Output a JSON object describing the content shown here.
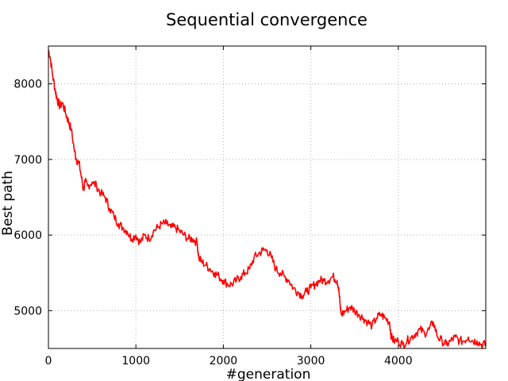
{
  "chart_data": {
    "type": "line",
    "title": "Sequential convergence",
    "xlabel": "#generation",
    "ylabel": "Best path",
    "xlim": [
      0,
      5000
    ],
    "ylim": [
      4500,
      8500
    ],
    "xticks": [
      0,
      1000,
      2000,
      3000,
      4000
    ],
    "yticks": [
      5000,
      6000,
      7000,
      8000
    ],
    "xtick_labels": [
      "0",
      "1000",
      "2000",
      "3000",
      "4000"
    ],
    "ytick_labels": [
      "5000",
      "6000",
      "7000",
      "8000"
    ],
    "grid": true,
    "colors": {
      "series": "#ff0000"
    },
    "series": [
      {
        "x": [
          0,
          20,
          50,
          80,
          100,
          130,
          160,
          200,
          230,
          260,
          300,
          320,
          350,
          380,
          400,
          420,
          450,
          500,
          550,
          600,
          650,
          700,
          750,
          800,
          850,
          900,
          950,
          1000,
          1050,
          1100,
          1150,
          1200,
          1250,
          1300,
          1350,
          1400,
          1450,
          1500,
          1550,
          1600,
          1650,
          1700,
          1720,
          1750,
          1800,
          1850,
          1900,
          1950,
          2000,
          2050,
          2100,
          2150,
          2200,
          2250,
          2300,
          2350,
          2400,
          2450,
          2500,
          2550,
          2600,
          2650,
          2700,
          2750,
          2800,
          2850,
          2900,
          2950,
          3000,
          3050,
          3100,
          3150,
          3200,
          3250,
          3300,
          3320,
          3340,
          3350,
          3400,
          3450,
          3500,
          3550,
          3600,
          3650,
          3700,
          3750,
          3800,
          3850,
          3900,
          3920,
          3950,
          4000,
          4050,
          4100,
          4150,
          4200,
          4250,
          4300,
          4350,
          4400,
          4450,
          4500,
          4550,
          4600,
          4650,
          4700,
          4750,
          4800,
          4850,
          4900,
          4950,
          5000
        ],
        "y": [
          8450,
          8350,
          8100,
          7900,
          7800,
          7700,
          7750,
          7600,
          7500,
          7400,
          7100,
          7000,
          6950,
          6750,
          6600,
          6700,
          6650,
          6700,
          6650,
          6550,
          6500,
          6350,
          6250,
          6150,
          6100,
          6050,
          5950,
          6000,
          5900,
          6000,
          5950,
          6050,
          6100,
          6150,
          6150,
          6100,
          6100,
          6050,
          6000,
          5950,
          5950,
          5900,
          5700,
          5650,
          5600,
          5550,
          5500,
          5450,
          5400,
          5350,
          5350,
          5400,
          5450,
          5500,
          5550,
          5700,
          5750,
          5800,
          5800,
          5700,
          5550,
          5500,
          5450,
          5400,
          5300,
          5250,
          5200,
          5250,
          5300,
          5350,
          5400,
          5400,
          5400,
          5450,
          5400,
          5300,
          5000,
          4950,
          5000,
          5050,
          5000,
          4950,
          4900,
          4850,
          4800,
          4900,
          4950,
          4900,
          4850,
          4650,
          4600,
          4600,
          4550,
          4600,
          4650,
          4700,
          4750,
          4700,
          4750,
          4850,
          4650,
          4600,
          4550,
          4600,
          4650,
          4600,
          4600,
          4650,
          4600,
          4600,
          4550,
          4550
        ]
      }
    ]
  }
}
